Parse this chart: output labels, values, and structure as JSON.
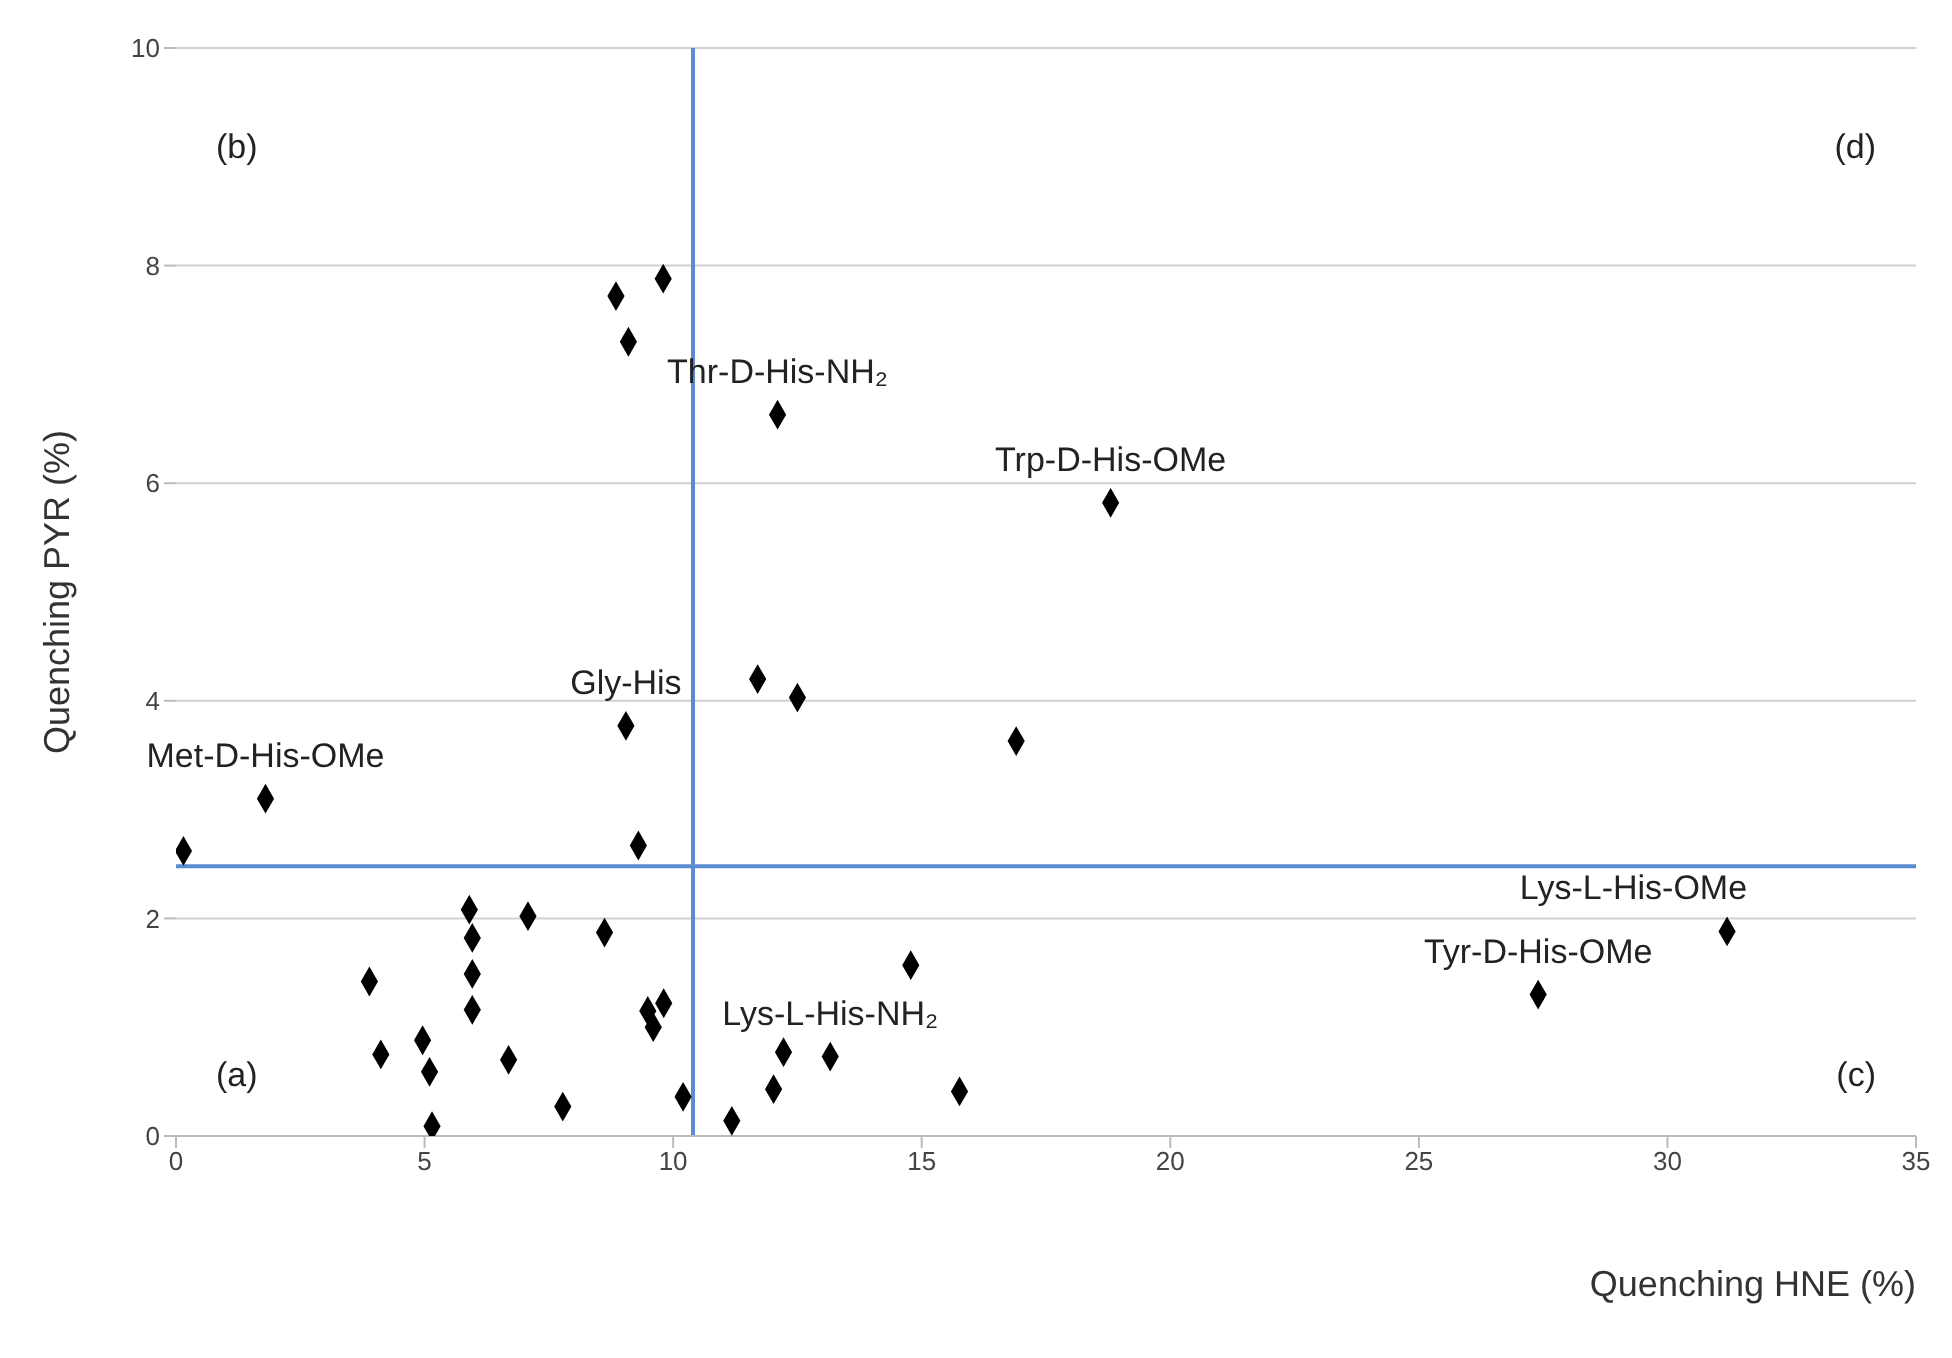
{
  "chart_data": {
    "type": "scatter",
    "xlabel": "Quenching HNE (%)",
    "ylabel": "Quenching PYR (%)",
    "xlim": [
      0,
      35
    ],
    "xticks": [
      0,
      5,
      10,
      15,
      20,
      25,
      30,
      35
    ],
    "ylim": [
      0,
      10
    ],
    "yticks": [
      0,
      2,
      4,
      6,
      8,
      10
    ],
    "grid": "y",
    "marker": "diamond",
    "legend": false,
    "series": [
      {
        "color": "#000000",
        "x": [
          8.85,
          9.8,
          9.1,
          12.1,
          18.8,
          11.7,
          12.5,
          16.9,
          9.05,
          1.8,
          0.15,
          9.3,
          3.89,
          4.12,
          4.96,
          5.1,
          5.15,
          5.9,
          5.96,
          5.96,
          5.96,
          6.69,
          7.08,
          7.78,
          8.62,
          9.49,
          9.6,
          9.81,
          10.2,
          11.18,
          12.02,
          12.22,
          13.16,
          14.78,
          15.76,
          27.4,
          31.2
        ],
        "values": [
          7.72,
          7.88,
          7.3,
          6.63,
          5.82,
          4.2,
          4.03,
          3.63,
          3.77,
          3.1,
          2.62,
          2.67,
          1.42,
          0.75,
          0.88,
          0.59,
          0.09,
          2.08,
          1.82,
          1.49,
          1.16,
          0.7,
          2.02,
          0.27,
          1.87,
          1.15,
          1.0,
          1.22,
          0.36,
          0.14,
          0.43,
          0.77,
          0.73,
          1.57,
          0.41,
          1.3,
          1.88
        ]
      }
    ],
    "ref_lines": [
      {
        "axis": "x",
        "value": 10.4,
        "color": "#5b8bd0"
      },
      {
        "axis": "y",
        "value": 2.48,
        "color": "#5b8bd0"
      }
    ],
    "annotations": [
      {
        "text": "Thr-D-His-NH₂",
        "x": 12.1,
        "y": 6.63
      },
      {
        "text": "Trp-D-His-OMe",
        "x": 18.8,
        "y": 5.82
      },
      {
        "text": "Gly-His",
        "x": 9.05,
        "y": 3.77
      },
      {
        "text": "Met-D-His-OMe",
        "x": 1.8,
        "y": 3.1
      },
      {
        "text": "Lys-L-His-OMe",
        "x": 31.2,
        "y": 1.88
      },
      {
        "text": "Tyr-D-His-OMe",
        "x": 27.4,
        "y": 1.3
      },
      {
        "text": "Lys-L-His-NH₂",
        "x": 13.16,
        "y": 0.73
      },
      "(b)",
      "(d)",
      "(a)",
      "(c)"
    ]
  }
}
